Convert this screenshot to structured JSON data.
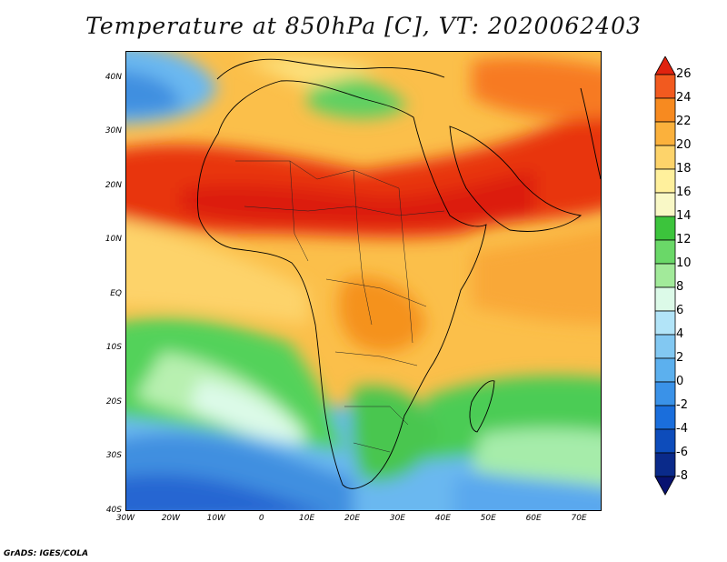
{
  "title": "Temperature at 850hPa [C], VT: 2020062403",
  "footer": "GrADS: IGES/COLA",
  "map": {
    "lon_range": [
      -30,
      75
    ],
    "lat_range": [
      -40,
      45
    ],
    "lat_ticks": [
      {
        "value": 40,
        "label": "40N"
      },
      {
        "value": 30,
        "label": "30N"
      },
      {
        "value": 20,
        "label": "20N"
      },
      {
        "value": 10,
        "label": "10N"
      },
      {
        "value": 0,
        "label": "EQ"
      },
      {
        "value": -10,
        "label": "10S"
      },
      {
        "value": -20,
        "label": "20S"
      },
      {
        "value": -30,
        "label": "30S"
      },
      {
        "value": -40,
        "label": "40S"
      }
    ],
    "lon_ticks": [
      {
        "value": -30,
        "label": "30W"
      },
      {
        "value": -20,
        "label": "20W"
      },
      {
        "value": -10,
        "label": "10W"
      },
      {
        "value": 0,
        "label": "0"
      },
      {
        "value": 10,
        "label": "10E"
      },
      {
        "value": 20,
        "label": "20E"
      },
      {
        "value": 30,
        "label": "30E"
      },
      {
        "value": 40,
        "label": "40E"
      },
      {
        "value": 50,
        "label": "50E"
      },
      {
        "value": 60,
        "label": "60E"
      },
      {
        "value": 70,
        "label": "70E"
      }
    ]
  },
  "colorbar": {
    "labels": [
      "26",
      "24",
      "22",
      "20",
      "18",
      "16",
      "14",
      "12",
      "10",
      "8",
      "6",
      "4",
      "2",
      "0",
      "-2",
      "-4",
      "-6",
      "-8"
    ],
    "colors": [
      "#e0230f",
      "#f25a1f",
      "#f78a20",
      "#fbb13c",
      "#fdd36a",
      "#fff09c",
      "#f9f8c6",
      "#3cc43c",
      "#6ad868",
      "#a2ea9a",
      "#dcfae8",
      "#b2e4f8",
      "#82c8f2",
      "#5cb0ee",
      "#3a92e8",
      "#1a6edc",
      "#0d4cbb",
      "#0a2a8a",
      "#081270"
    ]
  }
}
